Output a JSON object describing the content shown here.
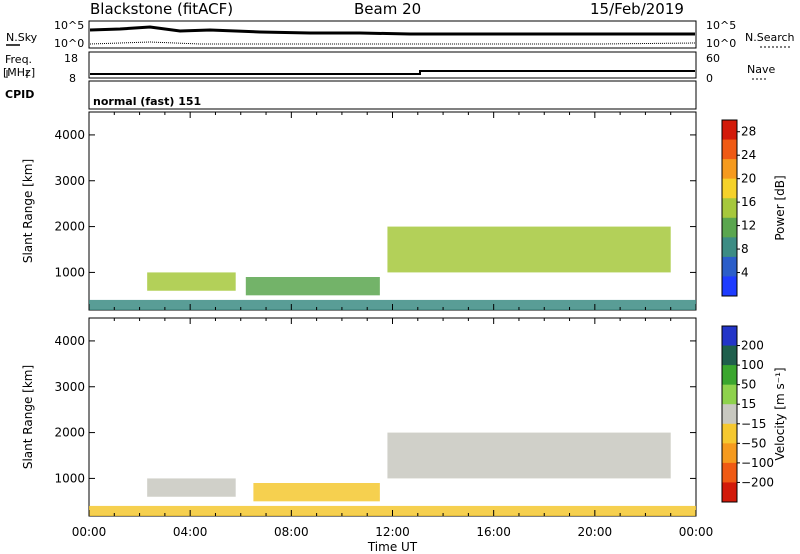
{
  "header": {
    "station": "Blackstone (fitACF)",
    "beam": "Beam 20",
    "date": "15/Feb/2019"
  },
  "panels": {
    "nsky": {
      "label": "N.Sky",
      "tick_top": "10^5",
      "tick_bottom": "10^0"
    },
    "nsearch": {
      "label": "N.Search",
      "tick_top": "10^5",
      "tick_bottom": "10^0"
    },
    "freq": {
      "label": "Freq.",
      "unit": "[MHz]",
      "tick_top": "18",
      "tick_bottom": "8"
    },
    "nave": {
      "label": "Nave",
      "tick_top": "60",
      "tick_bottom": "0"
    },
    "cpid": {
      "label": "CPID",
      "text": "normal (fast) 151"
    }
  },
  "chart_data": [
    {
      "type": "heatmap",
      "name": "Power",
      "xlabel": "",
      "ylabel": "Slant Range [km]",
      "xticks": [
        "00:00",
        "04:00",
        "08:00",
        "12:00",
        "16:00",
        "20:00",
        "00:00"
      ],
      "yticks": [
        1000,
        2000,
        3000,
        4000
      ],
      "xlim_hours": [
        0,
        24
      ],
      "ylim": [
        180,
        4500
      ],
      "colorbar": {
        "label": "Power [dB]",
        "ticks": [
          4,
          8,
          12,
          16,
          20,
          24,
          28
        ],
        "range": [
          0,
          30
        ],
        "colors": [
          "#1e3cff",
          "#2b5ec9",
          "#3c8c84",
          "#5aa64f",
          "#a6c83c",
          "#f5d22a",
          "#f59a1e",
          "#ef5a14",
          "#d21a0a"
        ]
      },
      "regions": [
        {
          "t0": 2.3,
          "t1": 5.8,
          "r0": 600,
          "r1": 1000,
          "power": 14
        },
        {
          "t0": 6.2,
          "t1": 11.5,
          "r0": 500,
          "r1": 900,
          "power": 10
        },
        {
          "t0": 11.8,
          "t1": 23.0,
          "r0": 1000,
          "r1": 2000,
          "power": 16
        },
        {
          "t0": 0.0,
          "t1": 24.0,
          "r0": 180,
          "r1": 400,
          "power": 8
        }
      ]
    },
    {
      "type": "heatmap",
      "name": "Velocity",
      "xlabel": "Time UT",
      "ylabel": "Slant Range [km]",
      "xticks": [
        "00:00",
        "04:00",
        "08:00",
        "12:00",
        "16:00",
        "20:00",
        "00:00"
      ],
      "yticks": [
        1000,
        2000,
        3000,
        4000
      ],
      "xlim_hours": [
        0,
        24
      ],
      "ylim": [
        180,
        4500
      ],
      "colorbar": {
        "label": "Velocity [m s⁻¹]",
        "ticks": [
          "200",
          "100",
          "50",
          "15",
          "−15",
          "−50",
          "−100",
          "−200"
        ],
        "colors": [
          "#2335c8",
          "#1f5f4c",
          "#3aa62e",
          "#8ed24c",
          "#c8c8c0",
          "#f5c830",
          "#f59a1e",
          "#ef5a14",
          "#d21a0a"
        ]
      },
      "regions": [
        {
          "t0": 2.3,
          "t1": 5.8,
          "r0": 600,
          "r1": 1000,
          "velocity": 0
        },
        {
          "t0": 6.5,
          "t1": 11.5,
          "r0": 500,
          "r1": 900,
          "velocity": -40
        },
        {
          "t0": 11.8,
          "t1": 23.0,
          "r0": 1000,
          "r1": 2000,
          "velocity": 0
        },
        {
          "t0": 0.0,
          "t1": 24.0,
          "r0": 180,
          "r1": 400,
          "velocity": -30
        }
      ]
    }
  ]
}
